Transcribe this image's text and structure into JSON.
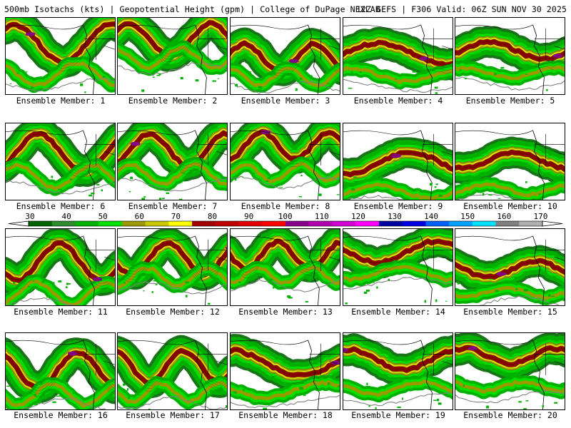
{
  "header": {
    "left": "500mb Isotachs (kts) | Geopotential Height (gpm) | College of DuPage NEXLAB",
    "right": "12Z GEFS | F306 Valid: 06Z SUN NOV 30 2025"
  },
  "members": [
    "Ensemble Member: 1",
    "Ensemble Member: 2",
    "Ensemble Member: 3",
    "Ensemble Member: 4",
    "Ensemble Member: 5",
    "Ensemble Member: 6",
    "Ensemble Member: 7",
    "Ensemble Member: 8",
    "Ensemble Member: 9",
    "Ensemble Member: 10",
    "Ensemble Member: 11",
    "Ensemble Member: 12",
    "Ensemble Member: 13",
    "Ensemble Member: 14",
    "Ensemble Member: 15",
    "Ensemble Member: 16",
    "Ensemble Member: 17",
    "Ensemble Member: 18",
    "Ensemble Member: 19",
    "Ensemble Member: 20"
  ],
  "colorbar": {
    "ticks": [
      "30",
      "40",
      "50",
      "60",
      "70",
      "80",
      "90",
      "100",
      "110",
      "120",
      "130",
      "140",
      "150",
      "160",
      "170"
    ],
    "colors": [
      "#006400",
      "#2e8b2e",
      "#00b400",
      "#00e000",
      "#9a9a00",
      "#c8c800",
      "#ffff00",
      "#a00000",
      "#c00000",
      "#e00000",
      "#ff0000",
      "#8b008b",
      "#b000b0",
      "#d000d0",
      "#ff00ff",
      "#0000a0",
      "#0000e0",
      "#0060ff",
      "#00a0ff",
      "#00e0ff",
      "#808080",
      "#b0b0b0"
    ]
  },
  "palette": {
    "green_dark": "#006400",
    "green": "#00b000",
    "green_light": "#00e000",
    "olive": "#9a9a00",
    "yellow": "#e8e800",
    "red_dark": "#8b0000",
    "purple": "#8a008a",
    "height_contour": "#808080",
    "border": "#000000"
  }
}
